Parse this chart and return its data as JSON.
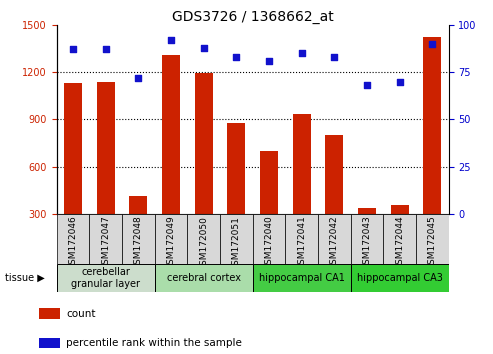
{
  "title": "GDS3726 / 1368662_at",
  "samples": [
    "GSM172046",
    "GSM172047",
    "GSM172048",
    "GSM172049",
    "GSM172050",
    "GSM172051",
    "GSM172040",
    "GSM172041",
    "GSM172042",
    "GSM172043",
    "GSM172044",
    "GSM172045"
  ],
  "counts": [
    1130,
    1140,
    415,
    1310,
    1195,
    875,
    700,
    935,
    800,
    340,
    355,
    1420
  ],
  "percentiles": [
    87,
    87,
    72,
    92,
    88,
    83,
    81,
    85,
    83,
    68,
    70,
    90
  ],
  "ylim_left": [
    300,
    1500
  ],
  "ylim_right": [
    0,
    100
  ],
  "yticks_left": [
    300,
    600,
    900,
    1200,
    1500
  ],
  "yticks_right": [
    0,
    25,
    50,
    75,
    100
  ],
  "bar_color": "#cc2200",
  "dot_color": "#1111cc",
  "grid_color": "#000000",
  "tissue_groups": [
    {
      "label": "cerebellar\ngranular layer",
      "start": 0,
      "end": 3,
      "color": "#ccddcc"
    },
    {
      "label": "cerebral cortex",
      "start": 3,
      "end": 6,
      "color": "#aaddaa"
    },
    {
      "label": "hippocampal CA1",
      "start": 6,
      "end": 9,
      "color": "#44cc44"
    },
    {
      "label": "hippocampal CA3",
      "start": 9,
      "end": 12,
      "color": "#33cc33"
    }
  ],
  "legend_count_label": "count",
  "legend_pct_label": "percentile rank within the sample",
  "left_tick_color": "#cc2200",
  "right_tick_color": "#0000cc",
  "bar_width": 0.55,
  "title_fontsize": 10,
  "tick_fontsize": 7,
  "tissue_fontsize": 7,
  "legend_fontsize": 7.5,
  "xtick_fontsize": 6.5
}
